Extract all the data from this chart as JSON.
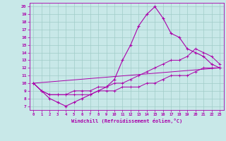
{
  "xlabel": "Windchill (Refroidissement éolien,°C)",
  "bg_color": "#c8e8e8",
  "line_color": "#aa00aa",
  "grid_color": "#a0ccc8",
  "xlim_min": -0.5,
  "xlim_max": 23.5,
  "ylim_min": 6.5,
  "ylim_max": 20.5,
  "yticks": [
    7,
    8,
    9,
    10,
    11,
    12,
    13,
    14,
    15,
    16,
    17,
    18,
    19,
    20
  ],
  "xticks": [
    0,
    1,
    2,
    3,
    4,
    5,
    6,
    7,
    8,
    9,
    10,
    11,
    12,
    13,
    14,
    15,
    16,
    17,
    18,
    19,
    20,
    21,
    22,
    23
  ],
  "line1_x": [
    0,
    1,
    2,
    3,
    4,
    5,
    6,
    7,
    8,
    9,
    10,
    11,
    12,
    13,
    14,
    15,
    16,
    17,
    18,
    19,
    20,
    21,
    22,
    23
  ],
  "line1_y": [
    10.0,
    9.0,
    8.0,
    7.5,
    7.0,
    7.5,
    8.0,
    8.5,
    9.0,
    9.5,
    10.5,
    13.0,
    15.0,
    17.5,
    19.0,
    20.0,
    18.5,
    16.5,
    16.0,
    14.5,
    14.0,
    13.5,
    12.5,
    12.0
  ],
  "line2_x": [
    0,
    1,
    2,
    3,
    4,
    5,
    6,
    7,
    8,
    9,
    10,
    11,
    12,
    13,
    14,
    15,
    16,
    17,
    18,
    19,
    20,
    21,
    22,
    23
  ],
  "line2_y": [
    10.0,
    9.0,
    8.5,
    8.5,
    8.5,
    9.0,
    9.0,
    9.0,
    9.5,
    9.5,
    10.0,
    10.0,
    10.5,
    11.0,
    11.5,
    12.0,
    12.5,
    13.0,
    13.0,
    13.5,
    14.5,
    14.0,
    13.5,
    12.5
  ],
  "line3_x": [
    0,
    1,
    2,
    3,
    4,
    5,
    6,
    7,
    8,
    9,
    10,
    11,
    12,
    13,
    14,
    15,
    16,
    17,
    18,
    19,
    20,
    21,
    22,
    23
  ],
  "line3_y": [
    10.0,
    9.0,
    8.5,
    8.5,
    8.5,
    8.5,
    8.5,
    8.5,
    9.0,
    9.0,
    9.0,
    9.5,
    9.5,
    9.5,
    10.0,
    10.0,
    10.5,
    11.0,
    11.0,
    11.0,
    11.5,
    12.0,
    12.0,
    12.0
  ],
  "line4_x": [
    0,
    23
  ],
  "line4_y": [
    10.0,
    12.0
  ]
}
